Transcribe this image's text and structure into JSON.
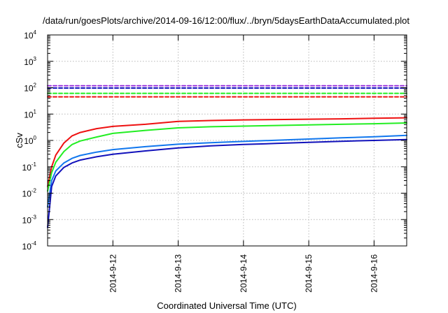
{
  "chart_data": {
    "type": "line",
    "title": "/data/run/goesPlots/archive/2014-09-16/12:00/flux/../bryn/5daysEarthDataAccumulated.plot",
    "xlabel": "Coordinated Universal Time (UTC)",
    "ylabel": "cSv",
    "x_axis": "date",
    "xlim": [
      "2014-09-11",
      "2014-09-16 12:00"
    ],
    "x_ticks": [
      "2014-9-12",
      "2014-9-13",
      "2014-9-14",
      "2014-9-15",
      "2014-9-16"
    ],
    "y_scale": "log",
    "ylim": [
      0.0001,
      10000
    ],
    "y_ticks": [
      {
        "base": "10",
        "exp": "-4"
      },
      {
        "base": "10",
        "exp": "-3"
      },
      {
        "base": "10",
        "exp": "-2"
      },
      {
        "base": "10",
        "exp": "-1"
      },
      {
        "base": "10",
        "exp": "0"
      },
      {
        "base": "10",
        "exp": "1"
      },
      {
        "base": "10",
        "exp": "2"
      },
      {
        "base": "10",
        "exp": "3"
      },
      {
        "base": "10",
        "exp": "4"
      }
    ],
    "grid": true,
    "legend": "none",
    "series": [
      {
        "color": "#ee1111",
        "style": "solid",
        "x": [
          "2014-09-11 00:00",
          "2014-09-11 01:30",
          "2014-09-11 03:00",
          "2014-09-11 06:00",
          "2014-09-11 09:00",
          "2014-09-11 12:00",
          "2014-09-11 18:00",
          "2014-09-12 00:00",
          "2014-09-12 12:00",
          "2014-09-13 00:00",
          "2014-09-13 12:00",
          "2014-09-14 00:00",
          "2014-09-14 12:00",
          "2014-09-15 00:00",
          "2014-09-15 12:00",
          "2014-09-16 00:00",
          "2014-09-16 12:00"
        ],
        "y": [
          0.018,
          0.1,
          0.28,
          0.8,
          1.5,
          2.0,
          2.8,
          3.4,
          4.1,
          5.3,
          5.7,
          6.0,
          6.2,
          6.4,
          6.6,
          6.9,
          7.2
        ]
      },
      {
        "color": "#22ee22",
        "style": "solid",
        "x": [
          "2014-09-11 00:00",
          "2014-09-11 01:30",
          "2014-09-11 03:00",
          "2014-09-11 06:00",
          "2014-09-11 09:00",
          "2014-09-11 12:00",
          "2014-09-11 18:00",
          "2014-09-12 00:00",
          "2014-09-12 12:00",
          "2014-09-13 00:00",
          "2014-09-13 12:00",
          "2014-09-14 00:00",
          "2014-09-14 12:00",
          "2014-09-15 00:00",
          "2014-09-15 12:00",
          "2014-09-16 00:00",
          "2014-09-16 12:00"
        ],
        "y": [
          0.012,
          0.06,
          0.15,
          0.38,
          0.7,
          0.95,
          1.35,
          1.85,
          2.4,
          3.0,
          3.3,
          3.5,
          3.7,
          3.9,
          4.1,
          4.3,
          4.6
        ]
      },
      {
        "color": "#1177ee",
        "style": "solid",
        "x": [
          "2014-09-11 00:00",
          "2014-09-11 01:30",
          "2014-09-11 03:00",
          "2014-09-11 06:00",
          "2014-09-11 09:00",
          "2014-09-11 12:00",
          "2014-09-11 18:00",
          "2014-09-12 00:00",
          "2014-09-12 12:00",
          "2014-09-13 00:00",
          "2014-09-13 12:00",
          "2014-09-14 00:00",
          "2014-09-14 12:00",
          "2014-09-15 00:00",
          "2014-09-15 12:00",
          "2014-09-16 00:00",
          "2014-09-16 12:00"
        ],
        "y": [
          0.003,
          0.03,
          0.07,
          0.14,
          0.21,
          0.27,
          0.36,
          0.45,
          0.58,
          0.72,
          0.82,
          0.92,
          1.02,
          1.13,
          1.25,
          1.38,
          1.55
        ]
      },
      {
        "color": "#1111bb",
        "style": "solid",
        "x": [
          "2014-09-11 00:00",
          "2014-09-11 01:30",
          "2014-09-11 03:00",
          "2014-09-11 06:00",
          "2014-09-11 09:00",
          "2014-09-11 12:00",
          "2014-09-11 18:00",
          "2014-09-12 00:00",
          "2014-09-12 12:00",
          "2014-09-13 00:00",
          "2014-09-13 12:00",
          "2014-09-14 00:00",
          "2014-09-14 12:00",
          "2014-09-15 00:00",
          "2014-09-15 12:00",
          "2014-09-16 00:00",
          "2014-09-16 12:00"
        ],
        "y": [
          0.0005,
          0.018,
          0.045,
          0.095,
          0.14,
          0.18,
          0.24,
          0.3,
          0.4,
          0.52,
          0.62,
          0.7,
          0.77,
          0.85,
          0.93,
          1.0,
          1.08
        ]
      },
      {
        "color": "#9933dd",
        "style": "dashed",
        "x": [
          "2014-09-11 00:00",
          "2014-09-16 12:00"
        ],
        "y": [
          118,
          118
        ]
      },
      {
        "color": "#1111bb",
        "style": "dashed",
        "x": [
          "2014-09-11 00:00",
          "2014-09-16 12:00"
        ],
        "y": [
          97,
          97
        ]
      },
      {
        "color": "#22ee22",
        "style": "dashed",
        "x": [
          "2014-09-11 00:00",
          "2014-09-16 12:00"
        ],
        "y": [
          61,
          61
        ]
      },
      {
        "color": "#ee1111",
        "style": "dashed",
        "x": [
          "2014-09-11 00:00",
          "2014-09-16 12:00"
        ],
        "y": [
          45,
          45
        ]
      }
    ]
  }
}
